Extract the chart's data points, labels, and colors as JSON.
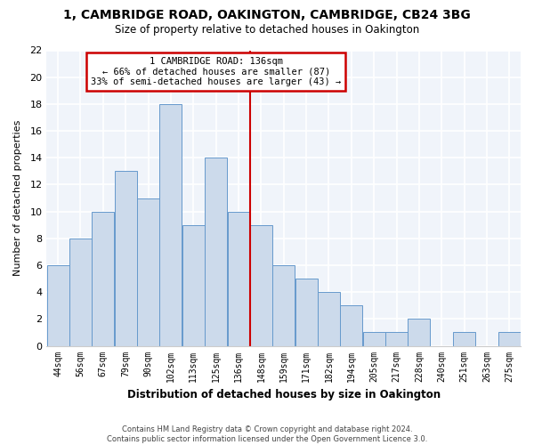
{
  "title": "1, CAMBRIDGE ROAD, OAKINGTON, CAMBRIDGE, CB24 3BG",
  "subtitle": "Size of property relative to detached houses in Oakington",
  "xlabel": "Distribution of detached houses by size in Oakington",
  "ylabel": "Number of detached properties",
  "footer_lines": [
    "Contains HM Land Registry data © Crown copyright and database right 2024.",
    "Contains public sector information licensed under the Open Government Licence 3.0."
  ],
  "bins": [
    "44sqm",
    "56sqm",
    "67sqm",
    "79sqm",
    "90sqm",
    "102sqm",
    "113sqm",
    "125sqm",
    "136sqm",
    "148sqm",
    "159sqm",
    "171sqm",
    "182sqm",
    "194sqm",
    "205sqm",
    "217sqm",
    "228sqm",
    "240sqm",
    "251sqm",
    "263sqm",
    "275sqm"
  ],
  "values": [
    6,
    8,
    10,
    13,
    11,
    18,
    9,
    14,
    10,
    9,
    6,
    5,
    4,
    3,
    1,
    1,
    2,
    0,
    1,
    0,
    1
  ],
  "property_line_bin_index": 8,
  "property_label": "1 CAMBRIDGE ROAD: 136sqm",
  "annotation_line1": "← 66% of detached houses are smaller (87)",
  "annotation_line2": "33% of semi-detached houses are larger (43) →",
  "bar_color": "#ccdaeb",
  "bar_edge_color": "#6699cc",
  "property_line_color": "#cc0000",
  "annotation_box_edge_color": "#cc0000",
  "background_color": "#ffffff",
  "plot_bg_color": "#f0f4fa",
  "grid_color": "#ffffff",
  "ylim": [
    0,
    22
  ],
  "yticks": [
    0,
    2,
    4,
    6,
    8,
    10,
    12,
    14,
    16,
    18,
    20,
    22
  ]
}
